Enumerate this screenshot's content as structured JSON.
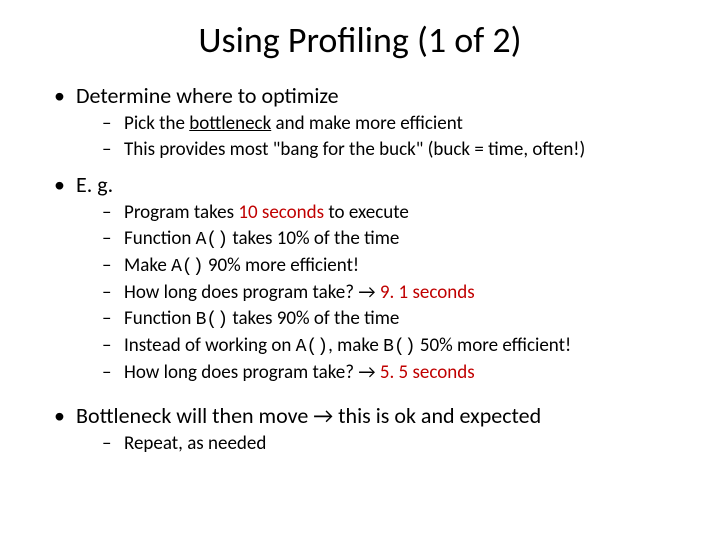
{
  "title": "Using Profiling (1 of 2)",
  "b1": {
    "text": "Determine where to optimize",
    "s1_a": "Pick the ",
    "s1_b": "bottleneck",
    "s1_c": " and make more efficient",
    "s2": "This provides most \"bang for the buck\" (buck = time, often!)"
  },
  "b2": {
    "text": "E. g.",
    "s1_a": "Program takes ",
    "s1_b": "10 seconds",
    "s1_c": " to execute",
    "s2_a": "Function ",
    "s2_b": "A()",
    "s2_c": " takes 10% of the time",
    "s3_a": "Make ",
    "s3_b": "A()",
    "s3_c": " 90% more efficient!",
    "s4_a": "How long does program take? → ",
    "s4_b": "9. 1 seconds",
    "s5_a": "Function ",
    "s5_b": "B()",
    "s5_c": " takes 90% of the time",
    "s6_a": "Instead of working on ",
    "s6_b": "A()",
    "s6_c": ", make ",
    "s6_d": "B()",
    "s6_e": " 50% more efficient!",
    "s7_a": "How long does program take? → ",
    "s7_b": "5. 5 seconds"
  },
  "b3": {
    "text": "Bottleneck will then move → this is ok and expected",
    "s1": "Repeat, as needed"
  },
  "colors": {
    "text": "#000000",
    "accent": "#c00000",
    "background": "#ffffff"
  },
  "fonts": {
    "title_size": 36,
    "bullet_size": 22,
    "sub_size": 19,
    "code_family": "Courier New"
  }
}
